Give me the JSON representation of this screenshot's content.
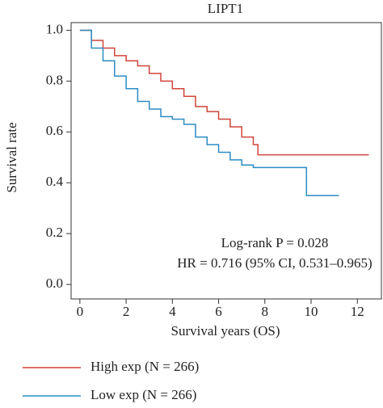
{
  "chart_data": {
    "type": "step",
    "title": "LIPT1",
    "x_label": "Survival years (OS)",
    "y_label": "Survival rate",
    "annotations": [
      "Log-rank P = 0.028",
      "HR = 0.716 (95% CI, 0.531–0.965)"
    ],
    "xlim": [
      -0.38,
      13.04
    ],
    "ylim": [
      -0.057,
      1.03
    ],
    "xticks": [
      0,
      2,
      4,
      6,
      8,
      10,
      12
    ],
    "yticks": [
      {
        "value": 0,
        "label": "0.0"
      },
      0.2,
      0.4,
      0.6,
      0.8,
      {
        "value": 1,
        "label": "1.0"
      }
    ],
    "series": [
      {
        "name": "High exp (N = 266)",
        "color": "#d1453b",
        "x": [
          0,
          0.5,
          1,
          1.5,
          2,
          2.5,
          3,
          3.5,
          4,
          4.5,
          5,
          5.5,
          6,
          6.5,
          7,
          7.5,
          7.7,
          12.5
        ],
        "values": [
          1.0,
          0.96,
          0.93,
          0.9,
          0.88,
          0.86,
          0.83,
          0.8,
          0.77,
          0.74,
          0.7,
          0.68,
          0.65,
          0.62,
          0.58,
          0.55,
          0.51,
          0.51
        ]
      },
      {
        "name": "Low exp (N = 266)",
        "color": "#2b8cc4",
        "x": [
          0,
          0.5,
          1,
          1.5,
          2,
          2.5,
          3,
          3.5,
          4,
          4.5,
          5,
          5.5,
          6,
          6.5,
          7,
          7.5,
          9.8,
          11.2
        ],
        "values": [
          1.0,
          0.93,
          0.88,
          0.82,
          0.77,
          0.72,
          0.69,
          0.66,
          0.65,
          0.63,
          0.58,
          0.55,
          0.52,
          0.49,
          0.47,
          0.46,
          0.35,
          0.35
        ]
      }
    ]
  }
}
